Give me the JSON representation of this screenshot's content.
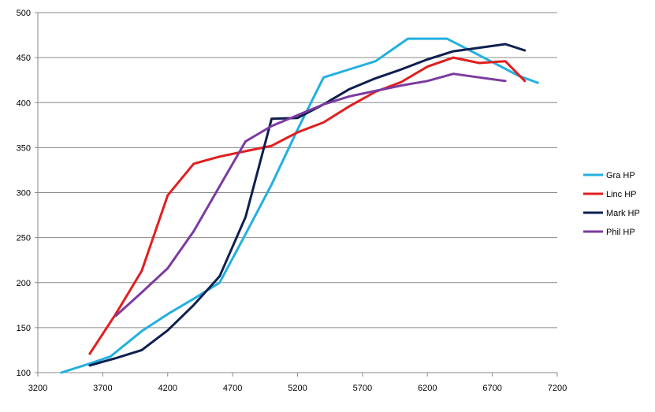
{
  "chart_data": {
    "type": "line",
    "title": "",
    "xlabel": "",
    "ylabel": "",
    "xlim": [
      3200,
      7200
    ],
    "ylim": [
      100,
      500
    ],
    "xticks": [
      3200,
      3700,
      4200,
      4700,
      5200,
      5700,
      6200,
      6700,
      7200
    ],
    "yticks": [
      100,
      150,
      200,
      250,
      300,
      350,
      400,
      450,
      500
    ],
    "grid": "horizontal",
    "legend": "right",
    "series": [
      {
        "name": "Gra HP",
        "color": "#23b0e0",
        "points": [
          [
            3380,
            100
          ],
          [
            3600,
            110
          ],
          [
            3760,
            118
          ],
          [
            4000,
            146
          ],
          [
            4200,
            165
          ],
          [
            4400,
            182
          ],
          [
            4600,
            200
          ],
          [
            4800,
            254
          ],
          [
            5000,
            309
          ],
          [
            5200,
            370
          ],
          [
            5400,
            428
          ],
          [
            5600,
            437
          ],
          [
            5800,
            446
          ],
          [
            6050,
            471
          ],
          [
            6200,
            471
          ],
          [
            6350,
            471
          ],
          [
            6500,
            460
          ],
          [
            6700,
            445
          ],
          [
            6900,
            430
          ],
          [
            7050,
            422
          ]
        ]
      },
      {
        "name": "Linc HP",
        "color": "#e01f1f",
        "points": [
          [
            3600,
            121
          ],
          [
            3800,
            165
          ],
          [
            4000,
            213
          ],
          [
            4200,
            297
          ],
          [
            4400,
            332
          ],
          [
            4600,
            340
          ],
          [
            4800,
            346
          ],
          [
            5000,
            352
          ],
          [
            5200,
            367
          ],
          [
            5400,
            378
          ],
          [
            5600,
            396
          ],
          [
            5800,
            412
          ],
          [
            6000,
            423
          ],
          [
            6200,
            440
          ],
          [
            6400,
            450
          ],
          [
            6600,
            444
          ],
          [
            6800,
            446
          ],
          [
            6950,
            424
          ]
        ]
      },
      {
        "name": "Mark HP",
        "color": "#0e1f4f",
        "points": [
          [
            3600,
            108
          ],
          [
            3800,
            116
          ],
          [
            4000,
            125
          ],
          [
            4200,
            147
          ],
          [
            4400,
            175
          ],
          [
            4600,
            207
          ],
          [
            4800,
            273
          ],
          [
            5000,
            382
          ],
          [
            5200,
            383
          ],
          [
            5400,
            398
          ],
          [
            5600,
            415
          ],
          [
            5800,
            427
          ],
          [
            6000,
            437
          ],
          [
            6200,
            448
          ],
          [
            6400,
            457
          ],
          [
            6600,
            461
          ],
          [
            6800,
            465
          ],
          [
            6950,
            458
          ]
        ]
      },
      {
        "name": "Phil HP",
        "color": "#7c3ba0",
        "points": [
          [
            3800,
            163
          ],
          [
            4000,
            189
          ],
          [
            4200,
            216
          ],
          [
            4400,
            257
          ],
          [
            4600,
            307
          ],
          [
            4800,
            357
          ],
          [
            5000,
            374
          ],
          [
            5200,
            386
          ],
          [
            5400,
            398
          ],
          [
            5600,
            407
          ],
          [
            5800,
            413
          ],
          [
            6000,
            419
          ],
          [
            6200,
            424
          ],
          [
            6400,
            432
          ],
          [
            6600,
            428
          ],
          [
            6800,
            424
          ]
        ]
      }
    ]
  }
}
